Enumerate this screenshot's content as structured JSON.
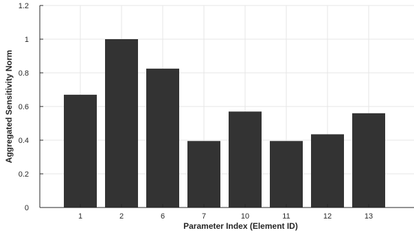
{
  "chart_data": {
    "type": "bar",
    "categories": [
      "1",
      "2",
      "6",
      "7",
      "10",
      "11",
      "12",
      "13"
    ],
    "values": [
      0.67,
      1.0,
      0.825,
      0.395,
      0.57,
      0.395,
      0.435,
      0.56
    ],
    "xlabel": "Parameter Index (Element ID)",
    "ylabel": "Aggregated Sensitivity Norm",
    "ylim": [
      0,
      1.2
    ],
    "yticks": [
      "0",
      "0.2",
      "0.4",
      "0.6",
      "0.8",
      "1",
      "1.2"
    ],
    "grid": true,
    "bar_color": "#333333",
    "grid_color": "#e6e6e6",
    "axis_color": "#262626"
  }
}
